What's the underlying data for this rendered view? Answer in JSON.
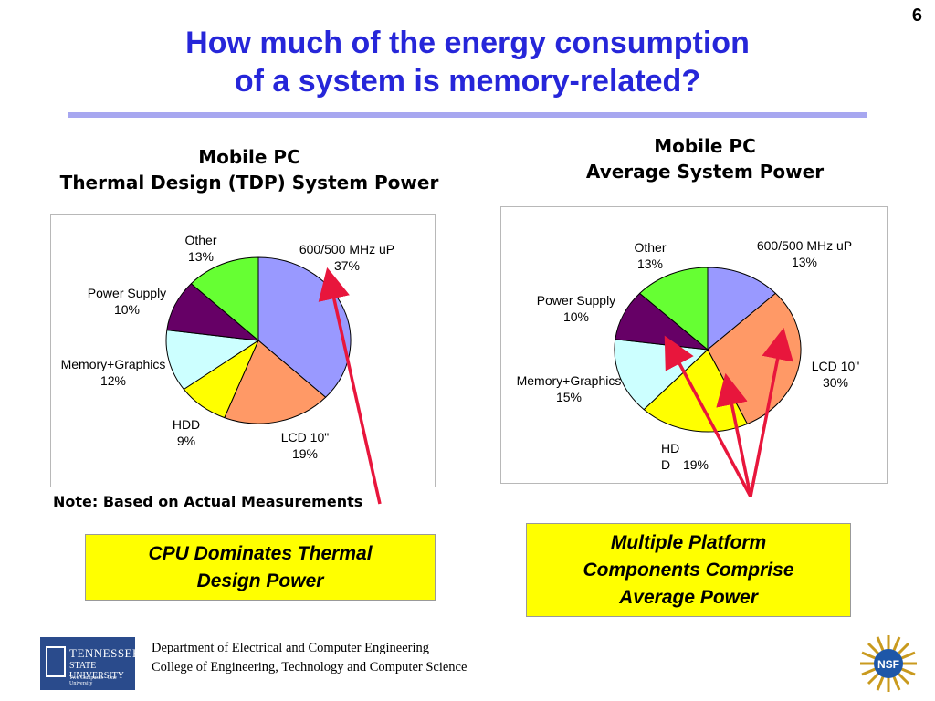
{
  "slide_number": "6",
  "title_lines": [
    "How much of the energy consumption",
    "of a system is memory-related?"
  ],
  "note": "Note: Based on Actual Measurements",
  "callout_left": [
    "CPU Dominates Thermal",
    "Design Power"
  ],
  "callout_right": [
    "Multiple Platform",
    "Components Comprise",
    "Average Power"
  ],
  "footer": {
    "line1": "Department of Electrical and Computer Engineering",
    "line2": "College of Engineering, Technology and Computer Science",
    "logo_line1": "TENNESSEE",
    "logo_line2": "STATE UNIVERSITY",
    "logo_line3": "Two Campuses · One University",
    "nsf_text": "NSF"
  },
  "colors": {
    "title": "#2626d9",
    "arrow": "#e8163c",
    "callout": "#ffff00"
  },
  "chart_data": [
    {
      "type": "pie",
      "title_lines": [
        "Mobile PC",
        "Thermal Design (TDP) System Power"
      ],
      "slices": [
        {
          "name_lines": [
            "600/500 MHz  uP"
          ],
          "value": 37,
          "pct_label": "37%",
          "color": "#9999ff"
        },
        {
          "name_lines": [
            "LCD 10\""
          ],
          "value": 19,
          "pct_label": "19%",
          "color": "#ff9966"
        },
        {
          "name_lines": [
            "HDD"
          ],
          "value": 9,
          "pct_label": "9%",
          "color": "#ffff00"
        },
        {
          "name_lines": [
            "Memory+Graphics"
          ],
          "value": 12,
          "pct_label": "12%",
          "color": "#ccffff"
        },
        {
          "name_lines": [
            "Power Supply"
          ],
          "value": 10,
          "pct_label": "10%",
          "color": "#660066"
        },
        {
          "name_lines": [
            "Other"
          ],
          "value": 13,
          "pct_label": "13%",
          "color": "#66ff33"
        }
      ]
    },
    {
      "type": "pie",
      "title_lines": [
        "Mobile PC",
        "Average System Power"
      ],
      "slices": [
        {
          "name_lines": [
            "600/500 MHz uP"
          ],
          "value": 13,
          "pct_label": "13%",
          "color": "#9999ff"
        },
        {
          "name_lines": [
            "LCD 10\""
          ],
          "value": 30,
          "pct_label": "30%",
          "color": "#ff9966"
        },
        {
          "name_lines": [
            "HD",
            "D"
          ],
          "value": 19,
          "pct_label": "19%",
          "color": "#ffff00"
        },
        {
          "name_lines": [
            "Memory+Graphics"
          ],
          "value": 15,
          "pct_label": "15%",
          "color": "#ccffff"
        },
        {
          "name_lines": [
            "Power Supply"
          ],
          "value": 10,
          "pct_label": "10%",
          "color": "#660066"
        },
        {
          "name_lines": [
            "Other"
          ],
          "value": 13,
          "pct_label": "13%",
          "color": "#66ff33"
        }
      ]
    }
  ]
}
